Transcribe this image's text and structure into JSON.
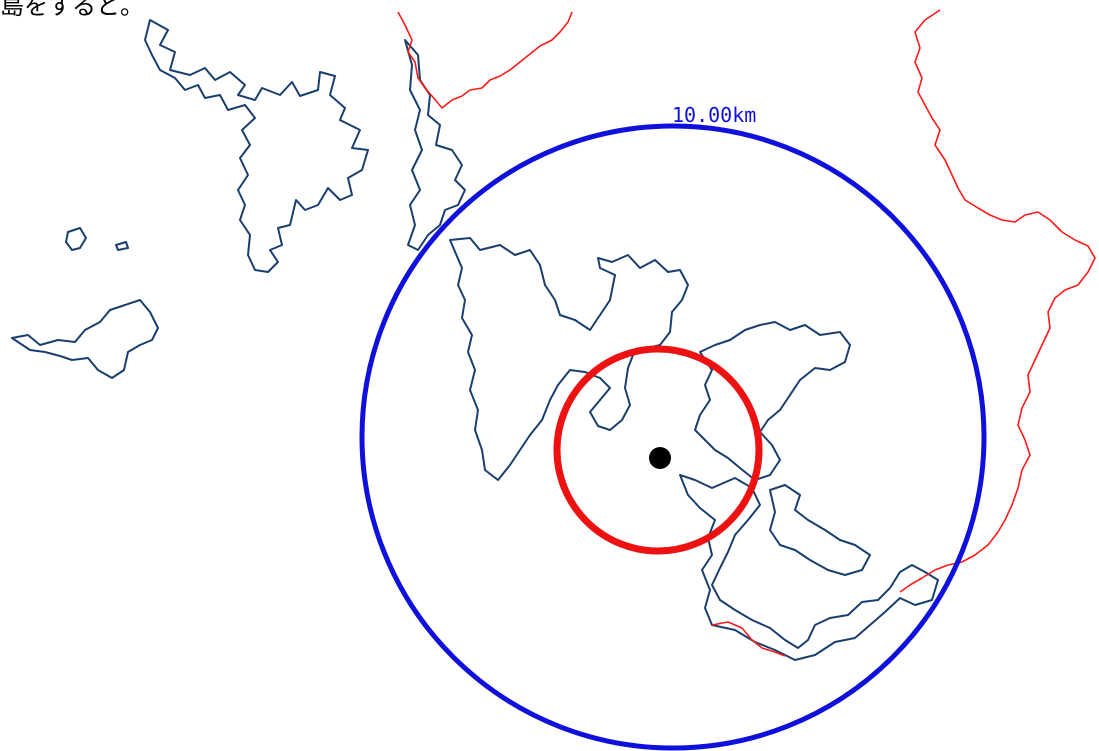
{
  "caption": "島をすると。",
  "map": {
    "scale_label": "10.00km",
    "colors": {
      "outer_circle": "#1010dd",
      "inner_circle": "#ee1111",
      "center_marker": "#000000",
      "coastline": "#1a3f6e",
      "boundary": "#ff1a1a",
      "background": "#ffffff"
    }
  }
}
